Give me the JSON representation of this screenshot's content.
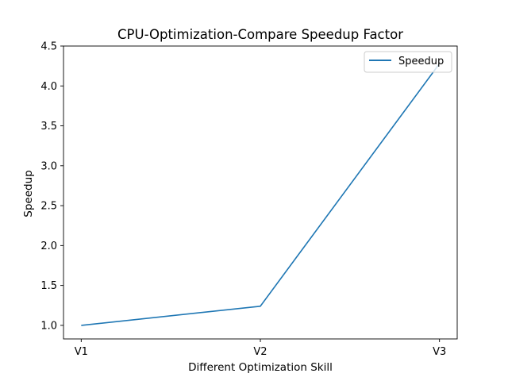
{
  "chart_data": {
    "type": "line",
    "title": "CPU-Optimization-Compare Speedup Factor",
    "xlabel": "Different Optimization Skill",
    "ylabel": "Speedup",
    "categories": [
      "V1",
      "V2",
      "V3"
    ],
    "series": [
      {
        "name": "Speedup",
        "values": [
          1.0,
          1.24,
          4.28
        ],
        "color": "#1f77b4"
      }
    ],
    "ylim": [
      0.83,
      4.5
    ],
    "yticks": [
      "1.0",
      "1.5",
      "2.0",
      "2.5",
      "3.0",
      "3.5",
      "4.0",
      "4.5"
    ],
    "grid": false,
    "legend_position": "top-right"
  }
}
